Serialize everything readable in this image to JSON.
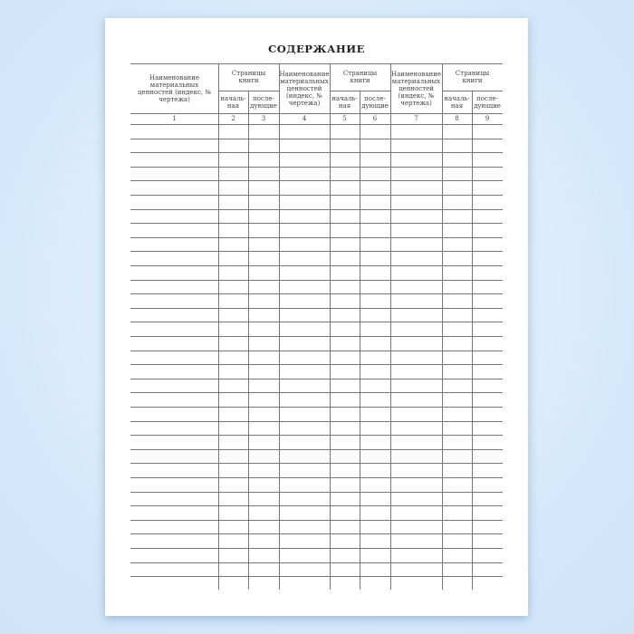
{
  "title": "СОДЕРЖАНИЕ",
  "headers": {
    "name_col_1": "Наименование материальных ценностей (индекс, № чертежа)",
    "name_col_2": "Наименование материальных ценностей (индекс, № чертежа)",
    "name_col_3": "Наименование материальных ценностей (индекс, № чертежа)",
    "pages_group": "Страницы книги",
    "first_page": "началь-ная",
    "next_pages": "после-дующие"
  },
  "column_numbers": [
    "1",
    "2",
    "3",
    "4",
    "5",
    "6",
    "7",
    "8",
    "9"
  ],
  "empty_rows": 32
}
